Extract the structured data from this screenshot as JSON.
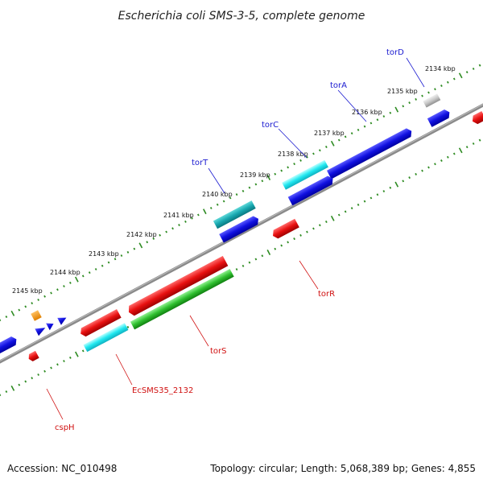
{
  "title": "Escherichia coli SMS-3-5, complete genome",
  "footer": {
    "accession": "Accession: NC_010498",
    "topology": "Topology: circular; Length: 5,068,389 bp; Genes: 4,855"
  },
  "colors": {
    "backbone": "#8a8a8a",
    "tick": "#2e8b22",
    "forward_strand": "#1010e0",
    "reverse_strand": "#e01010",
    "gene_label_forward": "#1a1ad0",
    "gene_label_reverse": "#d01010"
  },
  "kbp_labels": [
    "2134 kbp",
    "2135 kbp",
    "2136 kbp",
    "2137 kbp",
    "2138 kbp",
    "2139 kbp",
    "2140 kbp",
    "2141 kbp",
    "2142 kbp",
    "2143 kbp",
    "2144 kbp",
    "2145 kbp"
  ],
  "gene_labels_top": [
    "torD",
    "torA",
    "torC",
    "torT"
  ],
  "gene_labels_bottom": [
    "torR",
    "torS",
    "EcSMS35_2132",
    "cspH"
  ]
}
